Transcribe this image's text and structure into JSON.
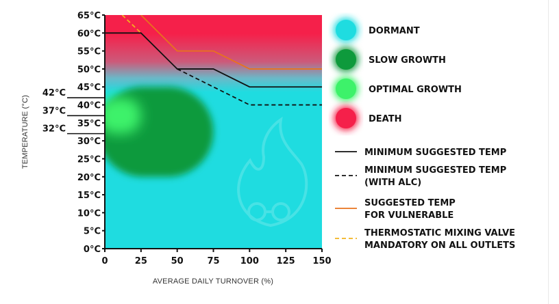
{
  "chart_data": {
    "type": "area",
    "xlabel": "AVERAGE DAILY TURNOVER (%)",
    "ylabel": "TEMPERATURE (°C)",
    "xlim": [
      0,
      150
    ],
    "ylim": [
      0,
      65
    ],
    "x_ticks": [
      0,
      25,
      50,
      75,
      100,
      125,
      150
    ],
    "y_ticks": [
      0,
      5,
      10,
      15,
      20,
      25,
      30,
      35,
      40,
      45,
      50,
      55,
      60,
      65
    ],
    "y_tick_labels": [
      "0°C",
      "5°C",
      "10°C",
      "15°C",
      "20°C",
      "25°C",
      "30°C",
      "35°C",
      "40°C",
      "45°C",
      "50°C",
      "55°C",
      "60°C",
      "65°C"
    ],
    "grid": false,
    "legend_position": "right",
    "zone_colors": {
      "dormant": "#1fdce0",
      "slow_growth": "#0e9a3c",
      "optimal_growth": "#3df26a",
      "death": "#f5204a"
    },
    "zones": [
      {
        "name": "DORMANT",
        "color": "#1fdce0"
      },
      {
        "name": "SLOW GROWTH",
        "color": "#0e9a3c",
        "y_range": [
          20,
          45
        ],
        "x_range": [
          0,
          75
        ]
      },
      {
        "name": "OPTIMAL GROWTH",
        "color": "#3df26a",
        "y_range": [
          32,
          42
        ],
        "x_range": [
          0,
          25
        ]
      },
      {
        "name": "DEATH",
        "color": "#f5204a",
        "y_range": [
          55,
          65
        ]
      }
    ],
    "markers": [
      {
        "label": "42°C",
        "y": 42
      },
      {
        "label": "37°C",
        "y": 37
      },
      {
        "label": "32°C",
        "y": 32
      }
    ],
    "series": [
      {
        "name": "MINIMUM SUGGESTED TEMP",
        "color": "#111111",
        "style": "solid",
        "x": [
          0,
          25,
          50,
          75,
          100,
          150
        ],
        "y": [
          60,
          60,
          50,
          50,
          45,
          45
        ]
      },
      {
        "name": "MINIMUM SUGGESTED TEMP (WITH ALC)",
        "color": "#111111",
        "style": "dashed",
        "x": [
          50,
          75,
          100,
          150
        ],
        "y": [
          50,
          45,
          40,
          40
        ]
      },
      {
        "name": "SUGGESTED TEMP FOR VULNERABLE",
        "color": "#e8731c",
        "style": "solid",
        "x": [
          25,
          50,
          75,
          100,
          150
        ],
        "y": [
          65,
          55,
          55,
          50,
          50
        ]
      },
      {
        "name": "THERMOSTATIC MIXING VALVE MANDATORY ON ALL OUTLETS",
        "color": "#f2b21c",
        "style": "dashed",
        "x": [
          12,
          25
        ],
        "y": [
          65,
          60
        ]
      }
    ]
  },
  "legend": {
    "zones": [
      {
        "label": "DORMANT",
        "color": "#1fdce0"
      },
      {
        "label": "SLOW GROWTH",
        "color": "#0e9a3c"
      },
      {
        "label": "OPTIMAL GROWTH",
        "color": "#3df26a"
      },
      {
        "label": "DEATH",
        "color": "#f5204a"
      }
    ],
    "lines": [
      {
        "lines": [
          "MINIMUM SUGGESTED TEMP"
        ],
        "color": "#111111",
        "dashed": false
      },
      {
        "lines": [
          "MINIMUM SUGGESTED TEMP",
          "(WITH ALC)"
        ],
        "color": "#111111",
        "dashed": true
      },
      {
        "lines": [
          "SUGGESTED TEMP",
          "FOR VULNERABLE"
        ],
        "color": "#e8731c",
        "dashed": false
      },
      {
        "lines": [
          "THERMOSTATIC MIXING VALVE",
          "MANDATORY ON ALL OUTLETS"
        ],
        "color": "#f2b21c",
        "dashed": true
      }
    ]
  }
}
